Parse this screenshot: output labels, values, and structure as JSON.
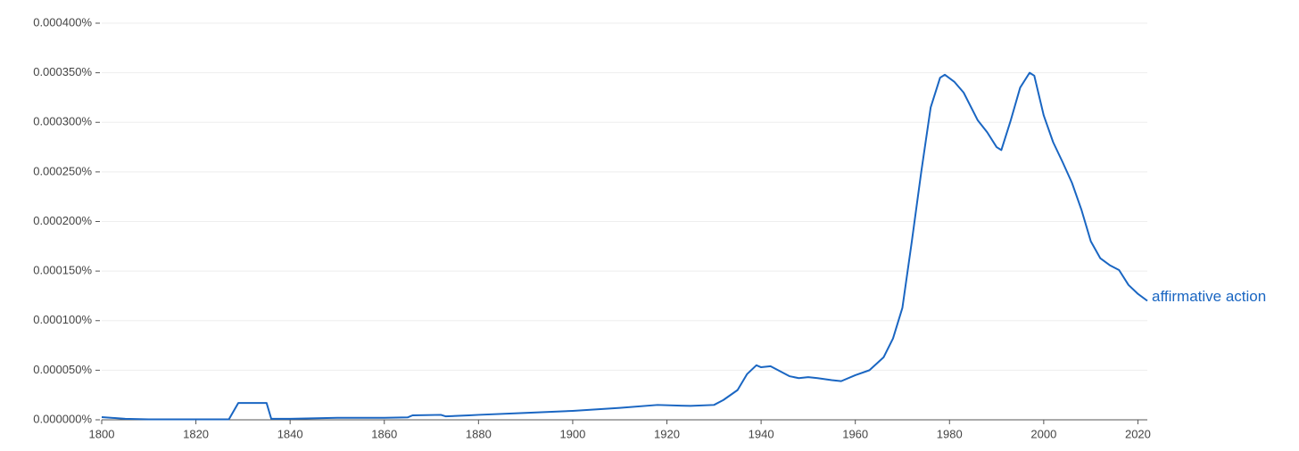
{
  "chart_data": {
    "type": "line",
    "x": [
      1800,
      1805,
      1810,
      1820,
      1827,
      1829,
      1835,
      1836,
      1840,
      1850,
      1860,
      1865,
      1866,
      1872,
      1873,
      1878,
      1880,
      1890,
      1900,
      1910,
      1918,
      1925,
      1930,
      1932,
      1935,
      1937,
      1939,
      1940,
      1942,
      1946,
      1948,
      1950,
      1952,
      1955,
      1957,
      1960,
      1963,
      1966,
      1968,
      1970,
      1972,
      1974,
      1976,
      1978,
      1979,
      1981,
      1983,
      1986,
      1988,
      1990,
      1991,
      1993,
      1995,
      1997,
      1998,
      2000,
      2002,
      2004,
      2006,
      2008,
      2010,
      2012,
      2014,
      2016,
      2018,
      2020,
      2022
    ],
    "series": [
      {
        "name": "affirmative action",
        "color": "#1a66c2",
        "values": [
          2.7e-06,
          1e-06,
          5e-07,
          5e-07,
          5e-07,
          1.7e-05,
          1.7e-05,
          1e-06,
          1e-06,
          2e-06,
          2e-06,
          2.5e-06,
          4.5e-06,
          5e-06,
          3.5e-06,
          4.5e-06,
          5e-06,
          7e-06,
          9e-06,
          1.2e-05,
          1.5e-05,
          1.4e-05,
          1.5e-05,
          2e-05,
          3e-05,
          4.6e-05,
          5.5e-05,
          5.3e-05,
          5.4e-05,
          4.4e-05,
          4.2e-05,
          4.3e-05,
          4.2e-05,
          4e-05,
          3.9e-05,
          4.5e-05,
          5e-05,
          6.3e-05,
          8.2e-05,
          0.000113,
          0.00018,
          0.00025,
          0.000315,
          0.000345,
          0.000348,
          0.000341,
          0.00033,
          0.000302,
          0.00029,
          0.000275,
          0.000272,
          0.000302,
          0.000335,
          0.00035,
          0.000347,
          0.000307,
          0.00028,
          0.00026,
          0.000239,
          0.000212,
          0.00018,
          0.000163,
          0.000156,
          0.000151,
          0.000136,
          0.000127,
          0.00012
        ]
      }
    ],
    "xlim": [
      1800,
      2022
    ],
    "xticks": [
      1800,
      1820,
      1840,
      1860,
      1880,
      1900,
      1920,
      1940,
      1960,
      1980,
      2000,
      2020
    ],
    "ylim": [
      0,
      0.0004
    ],
    "yticks": [
      {
        "value": 0,
        "label": "0.000000%"
      },
      {
        "value": 5e-05,
        "label": "0.000050%"
      },
      {
        "value": 0.0001,
        "label": "0.000100%"
      },
      {
        "value": 0.00015,
        "label": "0.000150%"
      },
      {
        "value": 0.0002,
        "label": "0.000200%"
      },
      {
        "value": 0.00025,
        "label": "0.000250%"
      },
      {
        "value": 0.0003,
        "label": "0.000300%"
      },
      {
        "value": 0.00035,
        "label": "0.000350%"
      },
      {
        "value": 0.0004,
        "label": "0.000400%"
      }
    ],
    "grid": true
  }
}
